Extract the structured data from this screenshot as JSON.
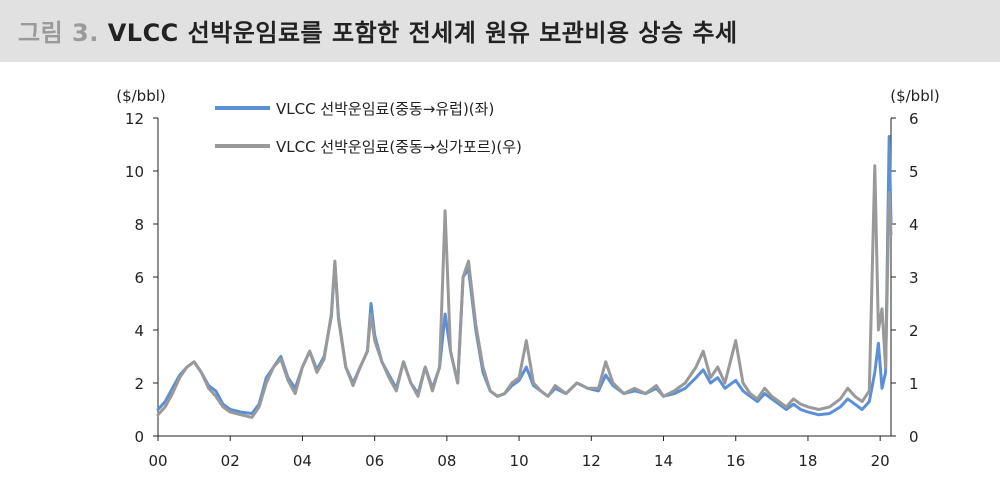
{
  "header": {
    "figure_label": "그림 3.",
    "title": "VLCC 선박운임료를 포함한 전세계 원유 보관비용 상승 추세"
  },
  "chart_data": {
    "type": "line",
    "y_unit_left": "($/bbl)",
    "y_unit_right": "($/bbl)",
    "y_left_range": [
      0,
      12
    ],
    "y_right_range": [
      0,
      6
    ],
    "y_left_ticks": [
      "0",
      "2",
      "4",
      "6",
      "8",
      "10",
      "12"
    ],
    "y_right_ticks": [
      "0",
      "1",
      "2",
      "3",
      "4",
      "5",
      "6"
    ],
    "x_range": [
      2000,
      2020.3
    ],
    "x_ticks": [
      "00",
      "02",
      "04",
      "06",
      "08",
      "10",
      "12",
      "14",
      "16",
      "18",
      "20"
    ],
    "grid": false,
    "legend_position": "top-left",
    "colors": {
      "series_1": "#5b8fd6",
      "series_2": "#999999"
    },
    "series": [
      {
        "name": "VLCC 선박운임료(중동→유럽)(좌)",
        "axis": "left",
        "points": [
          [
            2000.0,
            1.0
          ],
          [
            2000.2,
            1.3
          ],
          [
            2000.4,
            1.8
          ],
          [
            2000.6,
            2.3
          ],
          [
            2000.8,
            2.6
          ],
          [
            2001.0,
            2.8
          ],
          [
            2001.2,
            2.4
          ],
          [
            2001.4,
            1.9
          ],
          [
            2001.6,
            1.7
          ],
          [
            2001.8,
            1.2
          ],
          [
            2002.0,
            1.0
          ],
          [
            2002.3,
            0.9
          ],
          [
            2002.6,
            0.85
          ],
          [
            2002.8,
            1.2
          ],
          [
            2003.0,
            2.2
          ],
          [
            2003.2,
            2.6
          ],
          [
            2003.4,
            3.0
          ],
          [
            2003.6,
            2.2
          ],
          [
            2003.8,
            1.8
          ],
          [
            2004.0,
            2.6
          ],
          [
            2004.2,
            3.2
          ],
          [
            2004.4,
            2.5
          ],
          [
            2004.6,
            3.0
          ],
          [
            2004.8,
            4.5
          ],
          [
            2004.9,
            6.5
          ],
          [
            2005.0,
            4.5
          ],
          [
            2005.2,
            2.6
          ],
          [
            2005.4,
            2.0
          ],
          [
            2005.6,
            2.6
          ],
          [
            2005.8,
            3.2
          ],
          [
            2005.9,
            5.0
          ],
          [
            2006.0,
            3.8
          ],
          [
            2006.2,
            2.8
          ],
          [
            2006.4,
            2.3
          ],
          [
            2006.6,
            1.8
          ],
          [
            2006.8,
            2.8
          ],
          [
            2007.0,
            2.0
          ],
          [
            2007.2,
            1.6
          ],
          [
            2007.4,
            2.6
          ],
          [
            2007.6,
            1.8
          ],
          [
            2007.8,
            2.6
          ],
          [
            2007.95,
            4.6
          ],
          [
            2008.1,
            3.2
          ],
          [
            2008.3,
            2.0
          ],
          [
            2008.45,
            6.0
          ],
          [
            2008.6,
            6.3
          ],
          [
            2008.8,
            4.0
          ],
          [
            2009.0,
            2.4
          ],
          [
            2009.2,
            1.7
          ],
          [
            2009.4,
            1.5
          ],
          [
            2009.6,
            1.6
          ],
          [
            2009.8,
            1.9
          ],
          [
            2010.0,
            2.1
          ],
          [
            2010.2,
            2.6
          ],
          [
            2010.4,
            1.9
          ],
          [
            2010.6,
            1.7
          ],
          [
            2010.8,
            1.5
          ],
          [
            2011.0,
            1.8
          ],
          [
            2011.3,
            1.6
          ],
          [
            2011.6,
            2.0
          ],
          [
            2011.9,
            1.8
          ],
          [
            2012.2,
            1.7
          ],
          [
            2012.4,
            2.3
          ],
          [
            2012.6,
            1.9
          ],
          [
            2012.9,
            1.6
          ],
          [
            2013.2,
            1.7
          ],
          [
            2013.5,
            1.6
          ],
          [
            2013.8,
            1.8
          ],
          [
            2014.0,
            1.5
          ],
          [
            2014.3,
            1.6
          ],
          [
            2014.6,
            1.8
          ],
          [
            2014.9,
            2.2
          ],
          [
            2015.1,
            2.5
          ],
          [
            2015.3,
            2.0
          ],
          [
            2015.5,
            2.2
          ],
          [
            2015.7,
            1.8
          ],
          [
            2016.0,
            2.1
          ],
          [
            2016.2,
            1.7
          ],
          [
            2016.4,
            1.5
          ],
          [
            2016.6,
            1.3
          ],
          [
            2016.8,
            1.6
          ],
          [
            2017.0,
            1.4
          ],
          [
            2017.2,
            1.2
          ],
          [
            2017.4,
            1.0
          ],
          [
            2017.6,
            1.2
          ],
          [
            2017.8,
            1.0
          ],
          [
            2018.0,
            0.9
          ],
          [
            2018.3,
            0.8
          ],
          [
            2018.6,
            0.85
          ],
          [
            2018.9,
            1.1
          ],
          [
            2019.1,
            1.4
          ],
          [
            2019.3,
            1.2
          ],
          [
            2019.5,
            1.0
          ],
          [
            2019.7,
            1.3
          ],
          [
            2019.85,
            2.4
          ],
          [
            2019.95,
            3.5
          ],
          [
            2020.05,
            1.8
          ],
          [
            2020.15,
            2.4
          ],
          [
            2020.25,
            11.3
          ],
          [
            2020.3,
            8.0
          ]
        ]
      },
      {
        "name": "VLCC 선박운임료(중동→싱가포르)(우)",
        "axis": "right",
        "points": [
          [
            2000.0,
            0.4
          ],
          [
            2000.2,
            0.55
          ],
          [
            2000.4,
            0.8
          ],
          [
            2000.6,
            1.1
          ],
          [
            2000.8,
            1.3
          ],
          [
            2001.0,
            1.4
          ],
          [
            2001.2,
            1.2
          ],
          [
            2001.4,
            0.9
          ],
          [
            2001.6,
            0.75
          ],
          [
            2001.8,
            0.55
          ],
          [
            2002.0,
            0.45
          ],
          [
            2002.3,
            0.4
          ],
          [
            2002.6,
            0.35
          ],
          [
            2002.8,
            0.55
          ],
          [
            2003.0,
            1.0
          ],
          [
            2003.2,
            1.3
          ],
          [
            2003.4,
            1.45
          ],
          [
            2003.6,
            1.05
          ],
          [
            2003.8,
            0.8
          ],
          [
            2004.0,
            1.3
          ],
          [
            2004.2,
            1.6
          ],
          [
            2004.4,
            1.2
          ],
          [
            2004.6,
            1.45
          ],
          [
            2004.8,
            2.3
          ],
          [
            2004.9,
            3.3
          ],
          [
            2005.0,
            2.2
          ],
          [
            2005.2,
            1.3
          ],
          [
            2005.4,
            0.95
          ],
          [
            2005.6,
            1.3
          ],
          [
            2005.8,
            1.6
          ],
          [
            2005.9,
            2.3
          ],
          [
            2006.0,
            1.8
          ],
          [
            2006.2,
            1.4
          ],
          [
            2006.4,
            1.1
          ],
          [
            2006.6,
            0.85
          ],
          [
            2006.8,
            1.4
          ],
          [
            2007.0,
            1.0
          ],
          [
            2007.2,
            0.75
          ],
          [
            2007.4,
            1.3
          ],
          [
            2007.6,
            0.85
          ],
          [
            2007.8,
            1.3
          ],
          [
            2007.95,
            4.25
          ],
          [
            2008.1,
            1.6
          ],
          [
            2008.3,
            1.0
          ],
          [
            2008.45,
            3.0
          ],
          [
            2008.6,
            3.3
          ],
          [
            2008.8,
            2.1
          ],
          [
            2009.0,
            1.3
          ],
          [
            2009.2,
            0.85
          ],
          [
            2009.4,
            0.75
          ],
          [
            2009.6,
            0.8
          ],
          [
            2009.8,
            1.0
          ],
          [
            2010.0,
            1.1
          ],
          [
            2010.2,
            1.8
          ],
          [
            2010.4,
            1.0
          ],
          [
            2010.6,
            0.85
          ],
          [
            2010.8,
            0.75
          ],
          [
            2011.0,
            0.95
          ],
          [
            2011.3,
            0.8
          ],
          [
            2011.6,
            1.0
          ],
          [
            2011.9,
            0.9
          ],
          [
            2012.2,
            0.9
          ],
          [
            2012.4,
            1.4
          ],
          [
            2012.6,
            1.0
          ],
          [
            2012.9,
            0.8
          ],
          [
            2013.2,
            0.9
          ],
          [
            2013.5,
            0.8
          ],
          [
            2013.8,
            0.95
          ],
          [
            2014.0,
            0.75
          ],
          [
            2014.3,
            0.85
          ],
          [
            2014.6,
            1.0
          ],
          [
            2014.9,
            1.3
          ],
          [
            2015.1,
            1.6
          ],
          [
            2015.3,
            1.1
          ],
          [
            2015.5,
            1.3
          ],
          [
            2015.7,
            1.0
          ],
          [
            2016.0,
            1.8
          ],
          [
            2016.2,
            1.0
          ],
          [
            2016.4,
            0.8
          ],
          [
            2016.6,
            0.7
          ],
          [
            2016.8,
            0.9
          ],
          [
            2017.0,
            0.75
          ],
          [
            2017.2,
            0.65
          ],
          [
            2017.4,
            0.55
          ],
          [
            2017.6,
            0.7
          ],
          [
            2017.8,
            0.6
          ],
          [
            2018.0,
            0.55
          ],
          [
            2018.3,
            0.5
          ],
          [
            2018.6,
            0.55
          ],
          [
            2018.9,
            0.7
          ],
          [
            2019.1,
            0.9
          ],
          [
            2019.3,
            0.75
          ],
          [
            2019.5,
            0.65
          ],
          [
            2019.7,
            0.85
          ],
          [
            2019.85,
            5.1
          ],
          [
            2019.95,
            2.0
          ],
          [
            2020.05,
            2.4
          ],
          [
            2020.15,
            1.3
          ],
          [
            2020.25,
            4.6
          ],
          [
            2020.3,
            3.8
          ]
        ]
      }
    ]
  }
}
